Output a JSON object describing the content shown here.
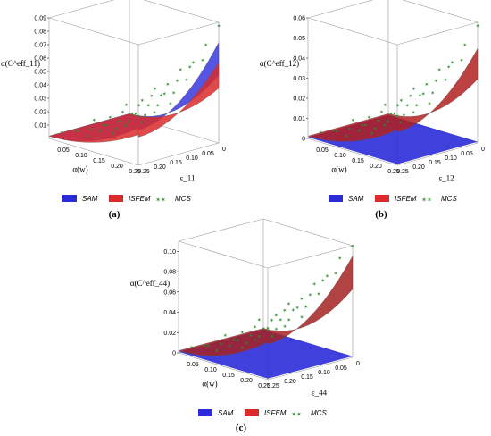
{
  "chart_data": [
    {
      "id": "a",
      "type": "surface3d",
      "panel_label": "(a)",
      "zlabel": "α(C^eff_11)",
      "xlabel": "α(w)",
      "ylabel": "ε_11",
      "x_ticks": [
        "0.05",
        "0.10",
        "0.15",
        "0.20",
        "0.25"
      ],
      "y_ticks": [
        "0.25",
        "0.20",
        "0.15",
        "0.10",
        "0.05",
        "0"
      ],
      "z_ticks": [
        "0.01",
        "0.02",
        "0.03",
        "0.04",
        "0.05",
        "0.06",
        "0.07",
        "0.08",
        "0.09"
      ],
      "zlim": [
        0,
        0.09
      ],
      "series": [
        {
          "name": "SAM",
          "color": "#2b2bd9",
          "shape": "convex",
          "z_at_max": 0.075
        },
        {
          "name": "ISFEM",
          "color": "#d92b2b",
          "shape": "convex",
          "z_at_max": 0.06
        },
        {
          "name": "MCS",
          "color": "#2e8b2e",
          "marker": "star",
          "z_at_max": 0.078
        }
      ]
    },
    {
      "id": "b",
      "type": "surface3d",
      "panel_label": "(b)",
      "zlabel": "α(C^eff_12)",
      "xlabel": "α(w)",
      "ylabel": "ε_12",
      "x_ticks": [
        "0.05",
        "0.10",
        "0.15",
        "0.20",
        "0.25"
      ],
      "y_ticks": [
        "0.25",
        "0.20",
        "0.15",
        "0.10",
        "0.05",
        "0"
      ],
      "z_ticks": [
        "0",
        "0.01",
        "0.02",
        "0.03",
        "0.04",
        "0.05",
        "0.06"
      ],
      "zlim": [
        0,
        0.06
      ],
      "series": [
        {
          "name": "SAM",
          "color": "#2b2bd9",
          "shape": "flat",
          "z_at_max": 0.0
        },
        {
          "name": "ISFEM",
          "color": "#b02020",
          "shape": "convex",
          "z_at_max": 0.047
        },
        {
          "name": "MCS",
          "color": "#2e8b2e",
          "marker": "star",
          "z_at_max": 0.052
        }
      ]
    },
    {
      "id": "c",
      "type": "surface3d",
      "panel_label": "(c)",
      "zlabel": "α(C^eff_44)",
      "xlabel": "α(w)",
      "ylabel": "ε_44",
      "x_ticks": [
        "0.05",
        "0.10",
        "0.15",
        "0.20",
        "0.25"
      ],
      "y_ticks": [
        "0.25",
        "0.20",
        "0.15",
        "0.10",
        "0.05",
        "0"
      ],
      "z_ticks": [
        "0",
        "0.02",
        "0.04",
        "0.06",
        "0.08",
        "0.10"
      ],
      "zlim": [
        0,
        0.11
      ],
      "series": [
        {
          "name": "SAM",
          "color": "#2b2bd9",
          "shape": "flat",
          "z_at_max": 0.0
        },
        {
          "name": "ISFEM",
          "color": "#a52222",
          "shape": "convex",
          "z_at_max": 0.1
        },
        {
          "name": "MCS",
          "color": "#2e8b2e",
          "marker": "star",
          "z_at_max": 0.105
        }
      ]
    }
  ],
  "legend": [
    {
      "name": "SAM",
      "color": "#2b2bd9"
    },
    {
      "name": "ISFEM",
      "color": "#d92b2b"
    },
    {
      "name": "MCS",
      "color": "#2e8b2e"
    }
  ]
}
